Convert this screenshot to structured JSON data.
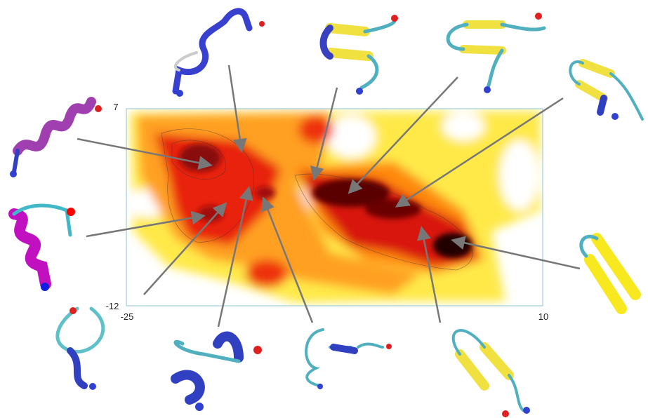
{
  "axes": {
    "y_max": 7,
    "y_min": -12,
    "x_min": -25,
    "x_max": 10
  }
}
